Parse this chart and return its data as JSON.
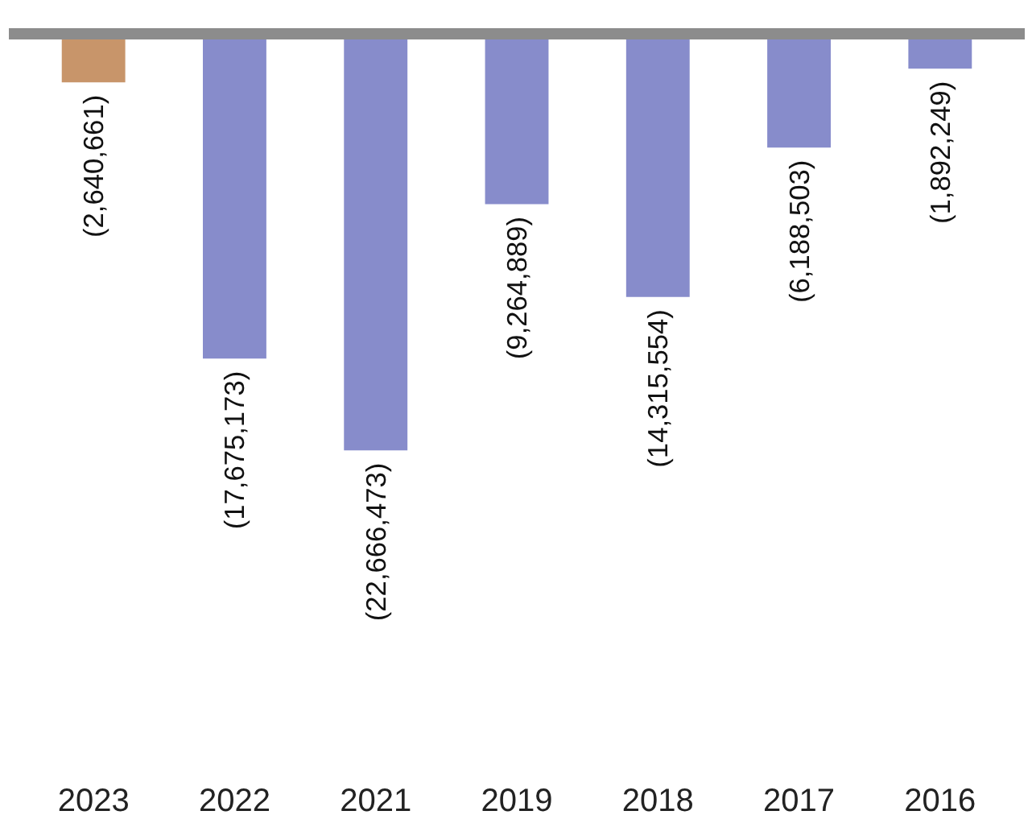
{
  "chart_data": {
    "type": "bar",
    "categories": [
      "2023",
      "2022",
      "2021",
      "2019",
      "2018",
      "2017",
      "2016"
    ],
    "values": [
      -2640661,
      -17675173,
      -22666473,
      -9264889,
      -14315554,
      -6188503,
      -1892249
    ],
    "value_labels": [
      "(2,640,661)",
      "(17,675,173)",
      "(22,666,473)",
      "(9,264,889)",
      "(14,315,554)",
      "(6,188,503)",
      "(1,892,249)"
    ],
    "colors": [
      "#c8956a",
      "#878ccb",
      "#878ccb",
      "#878ccb",
      "#878ccb",
      "#878ccb",
      "#878ccb"
    ],
    "grid": false
  }
}
